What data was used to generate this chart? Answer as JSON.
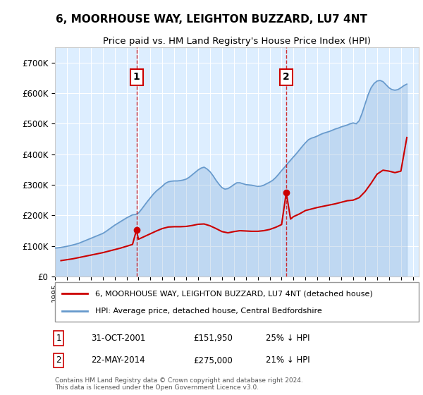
{
  "title": "6, MOORHOUSE WAY, LEIGHTON BUZZARD, LU7 4NT",
  "subtitle": "Price paid vs. HM Land Registry's House Price Index (HPI)",
  "ylabel": "",
  "xlim_start": 1995.0,
  "xlim_end": 2025.5,
  "ylim": [
    0,
    750000
  ],
  "yticks": [
    0,
    100000,
    200000,
    300000,
    400000,
    500000,
    600000,
    700000
  ],
  "ytick_labels": [
    "£0",
    "£100K",
    "£200K",
    "£300K",
    "£400K",
    "£500K",
    "£600K",
    "£700K"
  ],
  "sale1_date": 2001.83,
  "sale1_price": 151950,
  "sale1_label": "1",
  "sale2_date": 2014.39,
  "sale2_price": 275000,
  "sale2_label": "2",
  "hpi_color": "#6699cc",
  "price_color": "#cc0000",
  "sale_point_color": "#cc0000",
  "bg_color": "#ddeeff",
  "grid_color": "#ffffff",
  "annotation_box_color": "#cc0000",
  "legend_entry1": "6, MOORHOUSE WAY, LEIGHTON BUZZARD, LU7 4NT (detached house)",
  "legend_entry2": "HPI: Average price, detached house, Central Bedfordshire",
  "table_row1": [
    "1",
    "31-OCT-2001",
    "£151,950",
    "25% ↓ HPI"
  ],
  "table_row2": [
    "2",
    "22-MAY-2014",
    "£275,000",
    "21% ↓ HPI"
  ],
  "footer": "Contains HM Land Registry data © Crown copyright and database right 2024.\nThis data is licensed under the Open Government Licence v3.0.",
  "hpi_data_x": [
    1995.0,
    1995.25,
    1995.5,
    1995.75,
    1996.0,
    1996.25,
    1996.5,
    1996.75,
    1997.0,
    1997.25,
    1997.5,
    1997.75,
    1998.0,
    1998.25,
    1998.5,
    1998.75,
    1999.0,
    1999.25,
    1999.5,
    1999.75,
    2000.0,
    2000.25,
    2000.5,
    2000.75,
    2001.0,
    2001.25,
    2001.5,
    2001.75,
    2002.0,
    2002.25,
    2002.5,
    2002.75,
    2003.0,
    2003.25,
    2003.5,
    2003.75,
    2004.0,
    2004.25,
    2004.5,
    2004.75,
    2005.0,
    2005.25,
    2005.5,
    2005.75,
    2006.0,
    2006.25,
    2006.5,
    2006.75,
    2007.0,
    2007.25,
    2007.5,
    2007.75,
    2008.0,
    2008.25,
    2008.5,
    2008.75,
    2009.0,
    2009.25,
    2009.5,
    2009.75,
    2010.0,
    2010.25,
    2010.5,
    2010.75,
    2011.0,
    2011.25,
    2011.5,
    2011.75,
    2012.0,
    2012.25,
    2012.5,
    2012.75,
    2013.0,
    2013.25,
    2013.5,
    2013.75,
    2014.0,
    2014.25,
    2014.5,
    2014.75,
    2015.0,
    2015.25,
    2015.5,
    2015.75,
    2016.0,
    2016.25,
    2016.5,
    2016.75,
    2017.0,
    2017.25,
    2017.5,
    2017.75,
    2018.0,
    2018.25,
    2018.5,
    2018.75,
    2019.0,
    2019.25,
    2019.5,
    2019.75,
    2020.0,
    2020.25,
    2020.5,
    2020.75,
    2021.0,
    2021.25,
    2021.5,
    2021.75,
    2022.0,
    2022.25,
    2022.5,
    2022.75,
    2023.0,
    2023.25,
    2023.5,
    2023.75,
    2024.0,
    2024.25,
    2024.5
  ],
  "hpi_data_y": [
    93000,
    94000,
    95500,
    97000,
    99000,
    101000,
    103500,
    106000,
    109000,
    113000,
    117000,
    121000,
    125000,
    129000,
    133000,
    137000,
    141000,
    147000,
    154000,
    161000,
    168000,
    174000,
    180000,
    186000,
    192000,
    197000,
    202000,
    203000,
    208000,
    220000,
    233000,
    246000,
    258000,
    270000,
    280000,
    288000,
    296000,
    305000,
    310000,
    312000,
    313000,
    313000,
    314000,
    316000,
    319000,
    325000,
    333000,
    341000,
    349000,
    355000,
    358000,
    352000,
    343000,
    330000,
    315000,
    302000,
    291000,
    286000,
    288000,
    294000,
    301000,
    307000,
    307000,
    304000,
    301000,
    300000,
    299000,
    297000,
    295000,
    296000,
    299000,
    304000,
    309000,
    315000,
    324000,
    335000,
    347000,
    358000,
    370000,
    381000,
    392000,
    403000,
    415000,
    427000,
    438000,
    448000,
    453000,
    456000,
    460000,
    465000,
    469000,
    472000,
    475000,
    479000,
    483000,
    486000,
    490000,
    493000,
    496000,
    500000,
    503000,
    500000,
    510000,
    535000,
    565000,
    595000,
    618000,
    632000,
    640000,
    642000,
    638000,
    628000,
    618000,
    612000,
    610000,
    612000,
    618000,
    625000,
    630000
  ],
  "price_data_x": [
    1995.5,
    1996.0,
    1996.5,
    1997.0,
    1997.5,
    1998.0,
    1998.5,
    1999.0,
    1999.5,
    2000.0,
    2000.5,
    2001.0,
    2001.5,
    2001.83,
    2002.0,
    2002.5,
    2003.0,
    2003.5,
    2004.0,
    2004.5,
    2005.0,
    2005.5,
    2006.0,
    2006.5,
    2007.0,
    2007.5,
    2008.0,
    2008.5,
    2009.0,
    2009.5,
    2010.0,
    2010.5,
    2011.0,
    2011.5,
    2012.0,
    2012.5,
    2013.0,
    2013.5,
    2014.0,
    2014.39,
    2014.75,
    2015.0,
    2015.5,
    2016.0,
    2016.5,
    2017.0,
    2017.5,
    2018.0,
    2018.5,
    2019.0,
    2019.5,
    2020.0,
    2020.5,
    2021.0,
    2021.5,
    2022.0,
    2022.5,
    2023.0,
    2023.5,
    2024.0,
    2024.5
  ],
  "price_data_y": [
    52000,
    55000,
    58000,
    62000,
    66000,
    70000,
    74000,
    78000,
    83000,
    88000,
    93000,
    99000,
    105000,
    151950,
    122000,
    131000,
    140000,
    149000,
    157000,
    162000,
    163000,
    163000,
    164000,
    167000,
    171000,
    172000,
    166000,
    157000,
    147000,
    143000,
    147000,
    150000,
    149000,
    148000,
    148000,
    150000,
    154000,
    161000,
    170000,
    275000,
    188000,
    196000,
    205000,
    216000,
    221000,
    226000,
    230000,
    234000,
    238000,
    243000,
    248000,
    250000,
    258000,
    278000,
    305000,
    335000,
    348000,
    345000,
    340000,
    345000,
    455000
  ]
}
